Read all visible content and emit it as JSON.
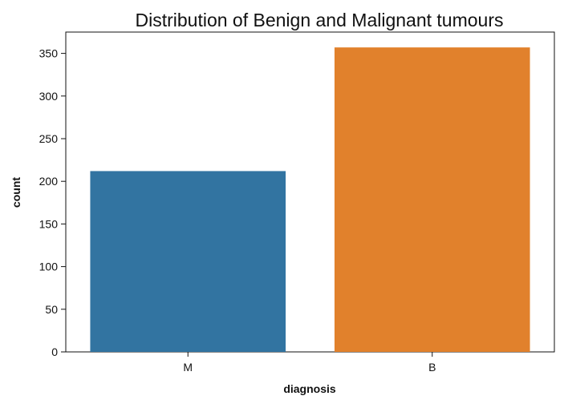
{
  "chart_data": {
    "type": "bar",
    "title": "Distribution of Benign and Malignant tumours",
    "xlabel": "diagnosis",
    "ylabel": "count",
    "categories": [
      "M",
      "B"
    ],
    "values": [
      212,
      357
    ],
    "ylim": [
      0,
      375
    ],
    "yticks": [
      0,
      50,
      100,
      150,
      200,
      250,
      300,
      350
    ],
    "colors": [
      "#3274a1",
      "#e1812c"
    ],
    "grid": false,
    "legend": "none"
  }
}
